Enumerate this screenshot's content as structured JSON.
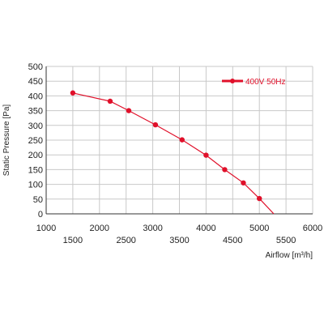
{
  "chart_data": {
    "type": "line",
    "xlabel": "Airflow [m³/h]",
    "ylabel": "Static Pressure [Pa]",
    "xlim": [
      1000,
      6000
    ],
    "ylim": [
      0,
      500
    ],
    "x_ticks": [
      1000,
      1500,
      2000,
      2500,
      3000,
      3500,
      4000,
      4500,
      5000,
      5500,
      6000
    ],
    "y_ticks": [
      0,
      50,
      100,
      150,
      200,
      250,
      300,
      350,
      400,
      450,
      500
    ],
    "grid": true,
    "legend_position": "top-right",
    "series": [
      {
        "name": "400V 50Hz",
        "color": "#e0102a",
        "x": [
          1500,
          2200,
          2550,
          3050,
          3550,
          4000,
          4350,
          4700,
          5000,
          5270
        ],
        "y": [
          410,
          382,
          350,
          302,
          251,
          199,
          150,
          105,
          52,
          0
        ],
        "marker_x": [
          1500,
          2200,
          2550,
          3050,
          3550,
          4000,
          4350,
          4700,
          5000
        ]
      }
    ]
  }
}
